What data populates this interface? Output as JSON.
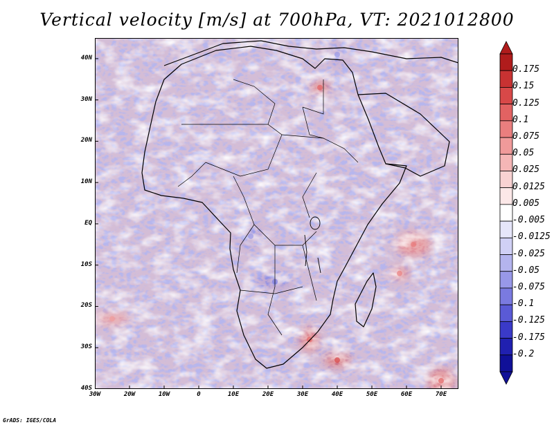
{
  "title": "Vertical velocity [m/s] at 700hPa, VT: 2021012800",
  "credit": "GrADS: IGES/COLA",
  "chart_data": {
    "type": "heatmap",
    "title": "Vertical velocity [m/s] at 700hPa, VT: 2021012800",
    "variable": "Vertical velocity",
    "units": "m/s",
    "level": "700hPa",
    "valid_time": "2021012800",
    "lon_range": [
      -30,
      75
    ],
    "lat_range": [
      -40,
      45
    ],
    "x_ticks": [
      {
        "lon": -30,
        "label": "30W"
      },
      {
        "lon": -20,
        "label": "20W"
      },
      {
        "lon": -10,
        "label": "10W"
      },
      {
        "lon": 0,
        "label": "0"
      },
      {
        "lon": 10,
        "label": "10E"
      },
      {
        "lon": 20,
        "label": "20E"
      },
      {
        "lon": 30,
        "label": "30E"
      },
      {
        "lon": 40,
        "label": "40E"
      },
      {
        "lon": 50,
        "label": "50E"
      },
      {
        "lon": 60,
        "label": "60E"
      },
      {
        "lon": 70,
        "label": "70E"
      }
    ],
    "y_ticks": [
      {
        "lat": 40,
        "label": "40N"
      },
      {
        "lat": 30,
        "label": "30N"
      },
      {
        "lat": 20,
        "label": "20N"
      },
      {
        "lat": 10,
        "label": "10N"
      },
      {
        "lat": 0,
        "label": "EQ"
      },
      {
        "lat": -10,
        "label": "10S"
      },
      {
        "lat": -20,
        "label": "20S"
      },
      {
        "lat": -30,
        "label": "30S"
      },
      {
        "lat": -40,
        "label": "40S"
      }
    ],
    "colorbar": {
      "labels": [
        "0.175",
        "0.15",
        "0.125",
        "0.1",
        "0.075",
        "0.05",
        "0.025",
        "0.0125",
        "0.005",
        "-0.005",
        "-0.0125",
        "-0.025",
        "-0.05",
        "-0.075",
        "-0.1",
        "-0.125",
        "-0.175",
        "-0.2"
      ],
      "colors": [
        "#b01c1c",
        "#c83232",
        "#d84848",
        "#e26262",
        "#ea7e7e",
        "#f09a9a",
        "#f5b6b6",
        "#f9d2d2",
        "#fce8e8",
        "#ffffff",
        "#e6e6fa",
        "#d0d0f5",
        "#b4b4ee",
        "#9898e8",
        "#7a7ae0",
        "#5a5ad6",
        "#3a3ac8",
        "#2020b0",
        "#101098"
      ]
    },
    "anomalies": [
      {
        "lon": 35,
        "lat": 33,
        "value": 0.1
      },
      {
        "lon": 15,
        "lat": -3,
        "value": -0.075
      },
      {
        "lon": 22,
        "lat": -14,
        "value": -0.1
      },
      {
        "lon": 32,
        "lat": -28,
        "value": 0.1
      },
      {
        "lon": 40,
        "lat": -33,
        "value": 0.125
      },
      {
        "lon": 62,
        "lat": -5,
        "value": 0.075
      },
      {
        "lon": 58,
        "lat": -12,
        "value": 0.075
      },
      {
        "lon": 70,
        "lat": -38,
        "value": 0.1
      },
      {
        "lon": -25,
        "lat": -23,
        "value": 0.05
      },
      {
        "lon": 40,
        "lat": 41,
        "value": -0.075
      }
    ]
  }
}
